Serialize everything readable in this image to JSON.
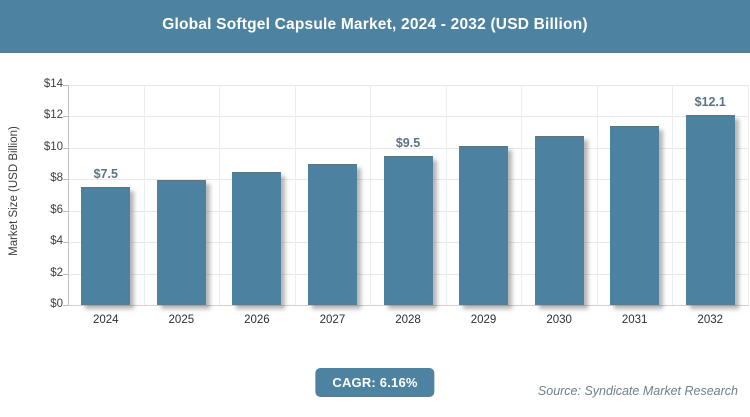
{
  "header": {
    "title": "Global Softgel Capsule Market, 2024 - 2032 (USD Billion)"
  },
  "chart_data": {
    "type": "bar",
    "title": "Global Softgel Capsule Market, 2024 - 2032 (USD Billion)",
    "categories": [
      "2024",
      "2025",
      "2026",
      "2027",
      "2028",
      "2029",
      "2030",
      "2031",
      "2032"
    ],
    "values": [
      7.5,
      7.96,
      8.45,
      8.97,
      9.5,
      10.11,
      10.73,
      11.4,
      12.1
    ],
    "bar_labels": [
      "$7.5",
      "",
      "",
      "",
      "$9.5",
      "",
      "",
      "",
      "$12.1"
    ],
    "xlabel": "",
    "ylabel": "Market Size (USD Billion)",
    "ylim": [
      0,
      14
    ],
    "yticks": [
      0,
      2,
      4,
      6,
      8,
      10,
      12,
      14
    ],
    "ytick_labels": [
      "$0",
      "$2",
      "$4",
      "$6",
      "$8",
      "$10",
      "$12",
      "$14"
    ],
    "grid": true,
    "legend": false
  },
  "footer": {
    "cagr_label": "CAGR: 6.16%",
    "source": "Source: Syndicate Market Research"
  },
  "colors": {
    "header_bg": "#4d82a0",
    "bar": "#4d81a0",
    "badge_bg": "#4d82a0",
    "title_text": "#ffffff",
    "bar_label_text": "#5c7383",
    "source_text": "#6e7f88"
  }
}
